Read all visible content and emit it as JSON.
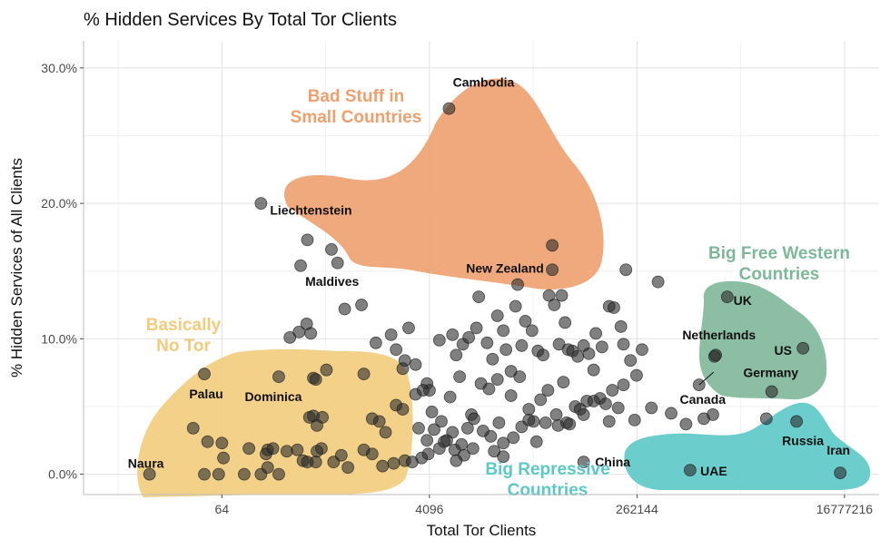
{
  "chart_data": {
    "type": "scatter",
    "title": "% Hidden Services By Total Tor Clients",
    "xlabel": "Total Tor Clients",
    "ylabel": "% Hidden Services of All Clients",
    "x_scale": "log2",
    "xlim": [
      4,
      33554432
    ],
    "ylim": [
      -1.5,
      32
    ],
    "x_ticks": [
      {
        "value": 64,
        "label": "64"
      },
      {
        "value": 4096,
        "label": "4096"
      },
      {
        "value": 262144,
        "label": "262144"
      },
      {
        "value": 16777216,
        "label": "16777216"
      }
    ],
    "y_ticks": [
      {
        "value": 0,
        "label": "0.0%"
      },
      {
        "value": 10,
        "label": "10.0%"
      },
      {
        "value": 20,
        "label": "20.0%"
      },
      {
        "value": 30,
        "label": "30.0%"
      }
    ],
    "grid": true,
    "groups": [
      {
        "label": "Bad Stuff in\nSmall Countries",
        "color": "#eea06e",
        "points": [
          [
            140,
            20.0
          ],
          [
            355,
            17.3
          ],
          [
            575,
            16.6
          ],
          [
            650,
            15.6
          ],
          [
            310,
            15.4
          ],
          [
            6070,
            27.0
          ],
          [
            48000,
            16.9
          ],
          [
            48000,
            15.1
          ],
          [
            24000,
            14.0
          ]
        ]
      },
      {
        "label": "Basically\nNo Tor",
        "color": "#f2cc7c",
        "points": [
          [
            15,
            0.0
          ],
          [
            45,
            7.4
          ],
          [
            200,
            7.2
          ],
          [
            400,
            7.1
          ],
          [
            420,
            7.0
          ],
          [
            36,
            3.4
          ],
          [
            48,
            2.4
          ],
          [
            64,
            2.3
          ],
          [
            66,
            1.2
          ],
          [
            110,
            1.9
          ],
          [
            160,
            1.8
          ],
          [
            155,
            1.5
          ],
          [
            178,
            1.9
          ],
          [
            235,
            1.7
          ],
          [
            290,
            1.8
          ],
          [
            325,
            1.0
          ],
          [
            355,
            0.9
          ],
          [
            420,
            0.9
          ],
          [
            370,
            4.2
          ],
          [
            400,
            4.3
          ],
          [
            430,
            3.6
          ],
          [
            480,
            4.2
          ],
          [
            470,
            1.9
          ],
          [
            430,
            1.7
          ],
          [
            45,
            0.0
          ],
          [
            60,
            0.0
          ],
          [
            100,
            0.0
          ],
          [
            140,
            0.0
          ],
          [
            160,
            0.5
          ],
          [
            200,
            0.0
          ]
        ]
      },
      {
        "label": "Big Free Western\nCountries",
        "color": "#7fb79a",
        "points": [
          [
            1600000,
            13.1
          ],
          [
            1240000,
            8.7
          ],
          [
            1270000,
            8.8
          ],
          [
            910000,
            6.6
          ],
          [
            3900000,
            6.1
          ],
          [
            7300000,
            9.3
          ]
        ]
      },
      {
        "label": "Big Repressive\nCountries",
        "color": "#5cc9c6",
        "points": [
          [
            90000,
            0.9
          ],
          [
            760000,
            0.3
          ],
          [
            6420000,
            3.9
          ],
          [
            15400000,
            0.1
          ]
        ]
      }
    ],
    "other_points": [
      [
        250,
        10.1
      ],
      [
        300,
        10.5
      ],
      [
        350,
        11.1
      ],
      [
        380,
        10.4
      ],
      [
        520,
        7.7
      ],
      [
        750,
        12.2
      ],
      [
        1100,
        7.4
      ],
      [
        1400,
        9.7
      ],
      [
        1900,
        10.3
      ],
      [
        2100,
        9.2
      ],
      [
        2500,
        8.4
      ],
      [
        2700,
        10.8
      ],
      [
        3100,
        8.1
      ],
      [
        3900,
        6.7
      ],
      [
        4100,
        6.2
      ],
      [
        5000,
        9.9
      ],
      [
        6500,
        10.3
      ],
      [
        7000,
        8.8
      ],
      [
        8000,
        9.6
      ],
      [
        9000,
        10.1
      ],
      [
        10500,
        10.8
      ],
      [
        11000,
        13.1
      ],
      [
        13000,
        9.7
      ],
      [
        14500,
        8.5
      ],
      [
        16000,
        11.7
      ],
      [
        18000,
        10.6
      ],
      [
        19000,
        9.2
      ],
      [
        21000,
        7.6
      ],
      [
        23000,
        12.4
      ],
      [
        26000,
        9.5
      ],
      [
        28000,
        11.3
      ],
      [
        32000,
        10.6
      ],
      [
        36000,
        9.1
      ],
      [
        40000,
        8.8
      ],
      [
        45000,
        13.2
      ],
      [
        50000,
        12.5
      ],
      [
        55000,
        9.6
      ],
      [
        58000,
        13.2
      ],
      [
        62000,
        11.2
      ],
      [
        66000,
        9.2
      ],
      [
        72000,
        9.1
      ],
      [
        80000,
        8.7
      ],
      [
        90000,
        9.5
      ],
      [
        100000,
        8.9
      ],
      [
        115000,
        10.4
      ],
      [
        130000,
        9.4
      ],
      [
        150000,
        12.4
      ],
      [
        165000,
        12.3
      ],
      [
        190000,
        10.9
      ],
      [
        200000,
        9.6
      ],
      [
        210000,
        15.1
      ],
      [
        230000,
        8.4
      ],
      [
        260000,
        7.3
      ],
      [
        290000,
        9.2
      ],
      [
        400000,
        14.2
      ],
      [
        1050,
        12.5
      ],
      [
        2400,
        7.8
      ],
      [
        3100,
        5.9
      ],
      [
        3600,
        6.2
      ],
      [
        4300,
        4.6
      ],
      [
        5200,
        3.9
      ],
      [
        6200,
        5.7
      ],
      [
        7500,
        7.2
      ],
      [
        9500,
        4.4
      ],
      [
        11500,
        6.7
      ],
      [
        13500,
        6.3
      ],
      [
        16000,
        7.0
      ],
      [
        21000,
        5.8
      ],
      [
        25000,
        7.2
      ],
      [
        30000,
        4.8
      ],
      [
        33000,
        3.9
      ],
      [
        38000,
        5.5
      ],
      [
        44000,
        6.2
      ],
      [
        52000,
        4.4
      ],
      [
        60000,
        6.8
      ],
      [
        68000,
        3.7
      ],
      [
        76000,
        5.0
      ],
      [
        84000,
        4.8
      ],
      [
        96000,
        5.4
      ],
      [
        110000,
        7.7
      ],
      [
        125000,
        5.6
      ],
      [
        140000,
        5.2
      ],
      [
        160000,
        6.2
      ],
      [
        180000,
        4.9
      ],
      [
        200000,
        6.6
      ],
      [
        250000,
        4.0
      ],
      [
        350000,
        4.9
      ],
      [
        520000,
        4.5
      ],
      [
        700000,
        3.7
      ],
      [
        1200000,
        4.4
      ],
      [
        3500000,
        4.1
      ],
      [
        1500,
        3.9
      ],
      [
        1700,
        3.1
      ],
      [
        2100,
        5.1
      ],
      [
        2400,
        4.8
      ],
      [
        3300,
        3.4
      ],
      [
        3900,
        2.5
      ],
      [
        4500,
        3.3
      ],
      [
        5800,
        2.5
      ],
      [
        6500,
        3.1
      ],
      [
        7800,
        2.2
      ],
      [
        8800,
        3.4
      ],
      [
        10000,
        4.1
      ],
      [
        12000,
        3.2
      ],
      [
        14000,
        2.8
      ],
      [
        16500,
        3.8
      ],
      [
        18000,
        2.3
      ],
      [
        22000,
        2.7
      ],
      [
        26000,
        3.5
      ],
      [
        30000,
        4.0
      ],
      [
        35000,
        2.4
      ],
      [
        42000,
        3.8
      ],
      [
        54000,
        3.6
      ],
      [
        64000,
        3.8
      ],
      [
        90000,
        4.4
      ],
      [
        110000,
        5.4
      ],
      [
        150000,
        3.9
      ],
      [
        1000000,
        4.1
      ],
      [
        1300,
        1.5
      ],
      [
        1600,
        0.6
      ],
      [
        2500,
        1.0
      ],
      [
        2900,
        0.9
      ],
      [
        4000,
        1.5
      ],
      [
        5000,
        1.9
      ],
      [
        5500,
        2.4
      ],
      [
        6800,
        1.8
      ],
      [
        8200,
        1.4
      ],
      [
        9800,
        1.9
      ],
      [
        15000,
        1.7
      ],
      [
        18000,
        1.3
      ],
      [
        600,
        0.9
      ],
      [
        700,
        1.4
      ],
      [
        800,
        0.5
      ],
      [
        1100,
        1.8
      ],
      [
        2000,
        0.8
      ],
      [
        3500,
        1.2
      ],
      [
        7000,
        1.0
      ],
      [
        1300,
        4.1
      ]
    ],
    "point_labels": [
      {
        "text": "Cambodia",
        "x": 6070,
        "y": 27.0
      },
      {
        "text": "Liechtenstein",
        "x": 355,
        "y": 17.3
      },
      {
        "text": "Maldives",
        "x": 650,
        "y": 15.6
      },
      {
        "text": "New Zealand",
        "x": 24000,
        "y": 14.0
      },
      {
        "text": "Palau",
        "x": 45,
        "y": 7.4
      },
      {
        "text": "Dominica",
        "x": 200,
        "y": 7.2
      },
      {
        "text": "Naura",
        "x": 15,
        "y": 0.0
      },
      {
        "text": "UK",
        "x": 1600000,
        "y": 13.1
      },
      {
        "text": "Netherlands",
        "x": 1240000,
        "y": 8.7
      },
      {
        "text": "Canada",
        "x": 910000,
        "y": 6.6
      },
      {
        "text": "US",
        "x": 7300000,
        "y": 9.3
      },
      {
        "text": "Germany",
        "x": 3900000,
        "y": 6.1
      },
      {
        "text": "China",
        "x": 90000,
        "y": 0.9
      },
      {
        "text": "UAE",
        "x": 760000,
        "y": 0.3
      },
      {
        "text": "Russia",
        "x": 6420000,
        "y": 3.9
      },
      {
        "text": "Iran",
        "x": 15400000,
        "y": 0.1
      }
    ]
  }
}
